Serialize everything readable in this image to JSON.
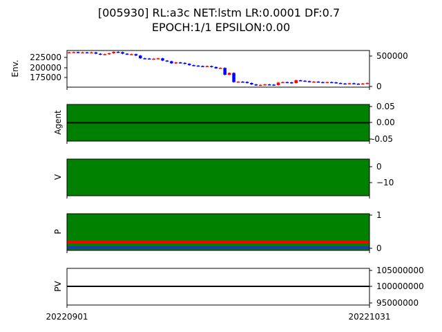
{
  "title_line1": "[005930] RL:a3c NET:lstm LR:0.0001 DF:0.7",
  "title_line2": "EPOCH:1/1 EPSILON:0.00",
  "xticks": [
    "20220901",
    "20221031"
  ],
  "colors": {
    "green": "#008000",
    "red": "#ff0000",
    "blue": "#1f3bb3",
    "black": "#000000",
    "candle_up": "#ff0000",
    "candle_down": "#0000ff"
  },
  "chart_data": [
    {
      "type": "candlestick",
      "ylabel": "Env.",
      "ylim": [
        160000,
        240000
      ],
      "yticks": [
        "175000",
        "200000",
        "225000"
      ],
      "y2lim": [
        0,
        600000
      ],
      "y2ticks": [
        "0",
        "500000"
      ],
      "close": [
        236000,
        236500,
        235500,
        236000,
        235000,
        236000,
        233000,
        231000,
        232000,
        234000,
        237000,
        236500,
        233000,
        231500,
        232000,
        229000,
        223000,
        222500,
        222000,
        222000,
        223000,
        218000,
        216500,
        212000,
        214000,
        213000,
        211000,
        208000,
        207000,
        206000,
        205500,
        206000,
        204000,
        201000,
        202000,
        187000,
        191000,
        171000,
        172000,
        171500,
        169000,
        166000,
        164000,
        165000,
        166000,
        165500,
        164500,
        170000,
        171000,
        170500,
        169000,
        175000,
        174000,
        173000,
        171500,
        172000,
        171000,
        170000,
        171000,
        170500,
        169000,
        168000,
        167000,
        168500,
        167500,
        166500,
        168000,
        169000
      ]
    },
    {
      "type": "area",
      "ylabel": "Agent",
      "ylim": [
        -0.055,
        0.055
      ],
      "yticks": [
        "0.05",
        "0.00",
        "-0.05"
      ],
      "fill": "green",
      "line_value": 0.0
    },
    {
      "type": "area",
      "ylabel": "V",
      "ylim": [
        -18,
        4
      ],
      "yticks": [
        "0",
        "−10"
      ],
      "fill": "green"
    },
    {
      "type": "area",
      "ylabel": "P",
      "ylim": [
        -0.03,
        1.03
      ],
      "yticks": [
        "1",
        "0"
      ],
      "fill": "green",
      "series": [
        {
          "color": "red",
          "value": 0.22
        },
        {
          "color": "blue",
          "value": 0.03
        }
      ]
    },
    {
      "type": "line",
      "ylabel": "PV",
      "ylim": [
        94500000,
        105500000
      ],
      "yticks": [
        "105000000",
        "100000000",
        "95000000"
      ],
      "line_value": 100000000
    }
  ]
}
